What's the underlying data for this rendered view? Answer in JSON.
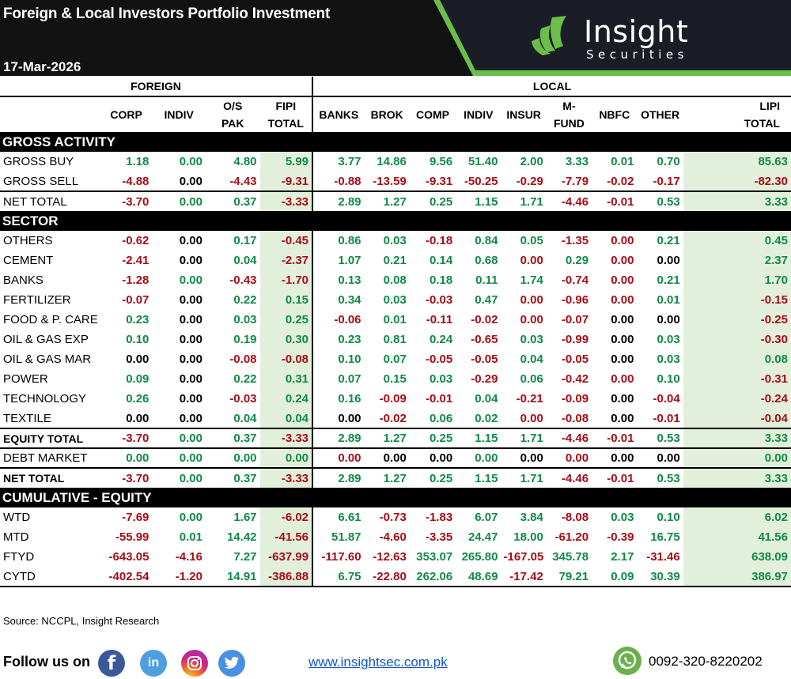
{
  "header": {
    "title": "Foreign & Local Investors Portfolio Investment",
    "date": "17-Mar-2026",
    "logo": {
      "name": "Insight",
      "sub": "Securities"
    },
    "colors": {
      "bg": "#121212",
      "panel": "#1b1d26",
      "accent": "#6abf4b"
    }
  },
  "groups": {
    "foreign": "FOREIGN",
    "local": "LOCAL"
  },
  "columns": {
    "foreign": [
      {
        "l1": "",
        "l2": "CORP"
      },
      {
        "l1": "",
        "l2": "INDIV"
      },
      {
        "l1": "O/S",
        "l2": "PAK"
      },
      {
        "l1": "FIPI",
        "l2": "TOTAL"
      }
    ],
    "local": [
      {
        "l1": "",
        "l2": "BANKS"
      },
      {
        "l1": "",
        "l2": "BROK"
      },
      {
        "l1": "",
        "l2": "COMP"
      },
      {
        "l1": "",
        "l2": "INDIV"
      },
      {
        "l1": "",
        "l2": "INSUR"
      },
      {
        "l1": "M-",
        "l2": "FUND"
      },
      {
        "l1": "",
        "l2": "NBFC"
      },
      {
        "l1": "",
        "l2": "OTHER"
      },
      {
        "l1": "LIPI",
        "l2": "TOTAL"
      }
    ]
  },
  "sections": {
    "gross": {
      "title": "GROSS ACTIVITY",
      "rows": [
        {
          "label": "GROSS BUY",
          "bold": false,
          "values": [
            "1.18",
            "0.00",
            "4.80",
            "5.99",
            "3.77",
            "14.86",
            "9.56",
            "51.40",
            "2.00",
            "3.33",
            "0.01",
            "0.70",
            "85.63"
          ],
          "tones": [
            "p",
            "p",
            "p",
            "p",
            "p",
            "p",
            "p",
            "p",
            "p",
            "p",
            "p",
            "p",
            "p"
          ]
        },
        {
          "label": "GROSS SELL",
          "bold": false,
          "values": [
            "-4.88",
            "0.00",
            "-4.43",
            "-9.31",
            "-0.88",
            "-13.59",
            "-9.31",
            "-50.25",
            "-0.29",
            "-7.79",
            "-0.02",
            "-0.17",
            "-82.30"
          ],
          "tones": [
            "n",
            "z",
            "n",
            "n",
            "n",
            "n",
            "n",
            "n",
            "n",
            "n",
            "n",
            "n",
            "n"
          ]
        },
        {
          "label": "NET TOTAL",
          "bold": false,
          "values": [
            "-3.70",
            "0.00",
            "0.37",
            "-3.33",
            "2.89",
            "1.27",
            "0.25",
            "1.15",
            "1.71",
            "-4.46",
            "-0.01",
            "0.53",
            "3.33"
          ],
          "tones": [
            "n",
            "p",
            "p",
            "n",
            "p",
            "p",
            "p",
            "p",
            "p",
            "n",
            "n",
            "p",
            "p"
          ]
        }
      ]
    },
    "sector": {
      "title": "SECTOR",
      "rows": [
        {
          "label": "OTHERS",
          "values": [
            "-0.62",
            "0.00",
            "0.17",
            "-0.45",
            "0.86",
            "0.03",
            "-0.18",
            "0.84",
            "0.05",
            "-1.35",
            "0.00",
            "0.21",
            "0.45"
          ],
          "tones": [
            "n",
            "z",
            "p",
            "n",
            "p",
            "p",
            "n",
            "p",
            "p",
            "n",
            "n",
            "p",
            "p"
          ]
        },
        {
          "label": "CEMENT",
          "values": [
            "-2.41",
            "0.00",
            "0.04",
            "-2.37",
            "1.07",
            "0.21",
            "0.14",
            "0.68",
            "0.00",
            "0.29",
            "0.00",
            "0.00",
            "2.37"
          ],
          "tones": [
            "n",
            "z",
            "p",
            "n",
            "p",
            "p",
            "p",
            "p",
            "n",
            "p",
            "n",
            "z",
            "p"
          ]
        },
        {
          "label": "BANKS",
          "values": [
            "-1.28",
            "0.00",
            "-0.43",
            "-1.70",
            "0.13",
            "0.08",
            "0.18",
            "0.11",
            "1.74",
            "-0.74",
            "0.00",
            "0.21",
            "1.70"
          ],
          "tones": [
            "n",
            "p",
            "n",
            "n",
            "p",
            "p",
            "p",
            "p",
            "p",
            "n",
            "n",
            "p",
            "p"
          ]
        },
        {
          "label": "FERTILIZER",
          "values": [
            "-0.07",
            "0.00",
            "0.22",
            "0.15",
            "0.34",
            "0.03",
            "-0.03",
            "0.47",
            "0.00",
            "-0.96",
            "0.00",
            "0.01",
            "-0.15"
          ],
          "tones": [
            "n",
            "z",
            "p",
            "p",
            "p",
            "p",
            "n",
            "p",
            "n",
            "n",
            "n",
            "p",
            "n"
          ]
        },
        {
          "label": "FOOD & P. CARE",
          "values": [
            "0.23",
            "0.00",
            "0.03",
            "0.25",
            "-0.06",
            "0.01",
            "-0.11",
            "-0.02",
            "0.00",
            "-0.07",
            "0.00",
            "0.00",
            "-0.25"
          ],
          "tones": [
            "p",
            "z",
            "p",
            "p",
            "n",
            "p",
            "n",
            "n",
            "n",
            "n",
            "z",
            "z",
            "n"
          ]
        },
        {
          "label": "OIL & GAS EXP",
          "values": [
            "0.10",
            "0.00",
            "0.19",
            "0.30",
            "0.23",
            "0.81",
            "0.24",
            "-0.65",
            "0.03",
            "-0.99",
            "0.00",
            "0.03",
            "-0.30"
          ],
          "tones": [
            "p",
            "z",
            "p",
            "p",
            "p",
            "p",
            "p",
            "n",
            "p",
            "n",
            "z",
            "p",
            "n"
          ]
        },
        {
          "label": "OIL & GAS MAR",
          "values": [
            "0.00",
            "0.00",
            "-0.08",
            "-0.08",
            "0.10",
            "0.07",
            "-0.05",
            "-0.05",
            "0.04",
            "-0.05",
            "0.00",
            "0.03",
            "0.08"
          ],
          "tones": [
            "z",
            "z",
            "n",
            "n",
            "p",
            "p",
            "n",
            "n",
            "p",
            "n",
            "z",
            "p",
            "p"
          ]
        },
        {
          "label": "POWER",
          "values": [
            "0.09",
            "0.00",
            "0.22",
            "0.31",
            "0.07",
            "0.15",
            "0.03",
            "-0.29",
            "0.06",
            "-0.42",
            "0.00",
            "0.10",
            "-0.31"
          ],
          "tones": [
            "p",
            "z",
            "p",
            "p",
            "p",
            "p",
            "p",
            "n",
            "p",
            "n",
            "n",
            "p",
            "n"
          ]
        },
        {
          "label": "TECHNOLOGY",
          "values": [
            "0.26",
            "0.00",
            "-0.03",
            "0.24",
            "0.16",
            "-0.09",
            "-0.01",
            "0.04",
            "-0.21",
            "-0.09",
            "0.00",
            "-0.04",
            "-0.24"
          ],
          "tones": [
            "p",
            "z",
            "n",
            "p",
            "p",
            "n",
            "n",
            "p",
            "n",
            "n",
            "z",
            "n",
            "n"
          ]
        },
        {
          "label": "TEXTILE",
          "values": [
            "0.00",
            "0.00",
            "0.04",
            "0.04",
            "0.00",
            "-0.02",
            "0.06",
            "0.02",
            "0.00",
            "-0.08",
            "0.00",
            "-0.01",
            "-0.04"
          ],
          "tones": [
            "z",
            "z",
            "p",
            "p",
            "z",
            "n",
            "p",
            "p",
            "n",
            "n",
            "z",
            "n",
            "n"
          ]
        }
      ],
      "totals": [
        {
          "label": "EQUITY TOTAL",
          "bold": true,
          "values": [
            "-3.70",
            "0.00",
            "0.37",
            "-3.33",
            "2.89",
            "1.27",
            "0.25",
            "1.15",
            "1.71",
            "-4.46",
            "-0.01",
            "0.53",
            "3.33"
          ],
          "tones": [
            "n",
            "p",
            "p",
            "n",
            "p",
            "p",
            "p",
            "p",
            "p",
            "n",
            "n",
            "p",
            "p"
          ]
        },
        {
          "label": "DEBT MARKET",
          "bold": false,
          "values": [
            "0.00",
            "0.00",
            "0.00",
            "0.00",
            "0.00",
            "0.00",
            "0.00",
            "0.00",
            "0.00",
            "0.00",
            "0.00",
            "0.00",
            "0.00"
          ],
          "tones": [
            "p",
            "p",
            "p",
            "p",
            "n",
            "z",
            "z",
            "p",
            "z",
            "n",
            "z",
            "z",
            "p"
          ]
        },
        {
          "label": "NET TOTAL",
          "bold": true,
          "values": [
            "-3.70",
            "0.00",
            "0.37",
            "-3.33",
            "2.89",
            "1.27",
            "0.25",
            "1.15",
            "1.71",
            "-4.46",
            "-0.01",
            "0.53",
            "3.33"
          ],
          "tones": [
            "n",
            "p",
            "p",
            "n",
            "p",
            "p",
            "p",
            "p",
            "p",
            "n",
            "n",
            "p",
            "p"
          ]
        }
      ]
    },
    "cumulative": {
      "title": "CUMULATIVE  - EQUITY",
      "rows": [
        {
          "label": "WTD",
          "values": [
            "-7.69",
            "0.00",
            "1.67",
            "-6.02",
            "6.61",
            "-0.73",
            "-1.83",
            "6.07",
            "3.84",
            "-8.08",
            "0.03",
            "0.10",
            "6.02"
          ],
          "tones": [
            "n",
            "p",
            "p",
            "n",
            "p",
            "n",
            "n",
            "p",
            "p",
            "n",
            "p",
            "p",
            "p"
          ]
        },
        {
          "label": "MTD",
          "values": [
            "-55.99",
            "0.01",
            "14.42",
            "-41.56",
            "51.87",
            "-4.60",
            "-3.35",
            "24.47",
            "18.00",
            "-61.20",
            "-0.39",
            "16.75",
            "41.56"
          ],
          "tones": [
            "n",
            "p",
            "p",
            "n",
            "p",
            "n",
            "n",
            "p",
            "p",
            "n",
            "n",
            "p",
            "p"
          ]
        },
        {
          "label": "FTYD",
          "values": [
            "-643.05",
            "-4.16",
            "7.27",
            "-637.99",
            "-117.60",
            "-12.63",
            "353.07",
            "265.80",
            "-167.05",
            "345.78",
            "2.17",
            "-31.46",
            "638.09"
          ],
          "tones": [
            "n",
            "n",
            "p",
            "n",
            "n",
            "n",
            "p",
            "p",
            "n",
            "p",
            "p",
            "n",
            "p"
          ]
        },
        {
          "label": "CYTD",
          "values": [
            "-402.54",
            "-1.20",
            "14.91",
            "-386.88",
            "6.75",
            "-22.80",
            "262.06",
            "48.69",
            "-17.42",
            "79.21",
            "0.09",
            "30.39",
            "386.97"
          ],
          "tones": [
            "n",
            "n",
            "p",
            "n",
            "p",
            "n",
            "p",
            "p",
            "n",
            "p",
            "p",
            "p",
            "p"
          ]
        }
      ]
    }
  },
  "source": "Source: NCCPL, Insight Research",
  "footer": {
    "follow_label": "Follow us on",
    "social": [
      "facebook-icon",
      "linkedin-icon",
      "instagram-icon",
      "twitter-icon"
    ],
    "website": "www.insightsec.com.pk",
    "phone": "0092-320-8220202"
  }
}
